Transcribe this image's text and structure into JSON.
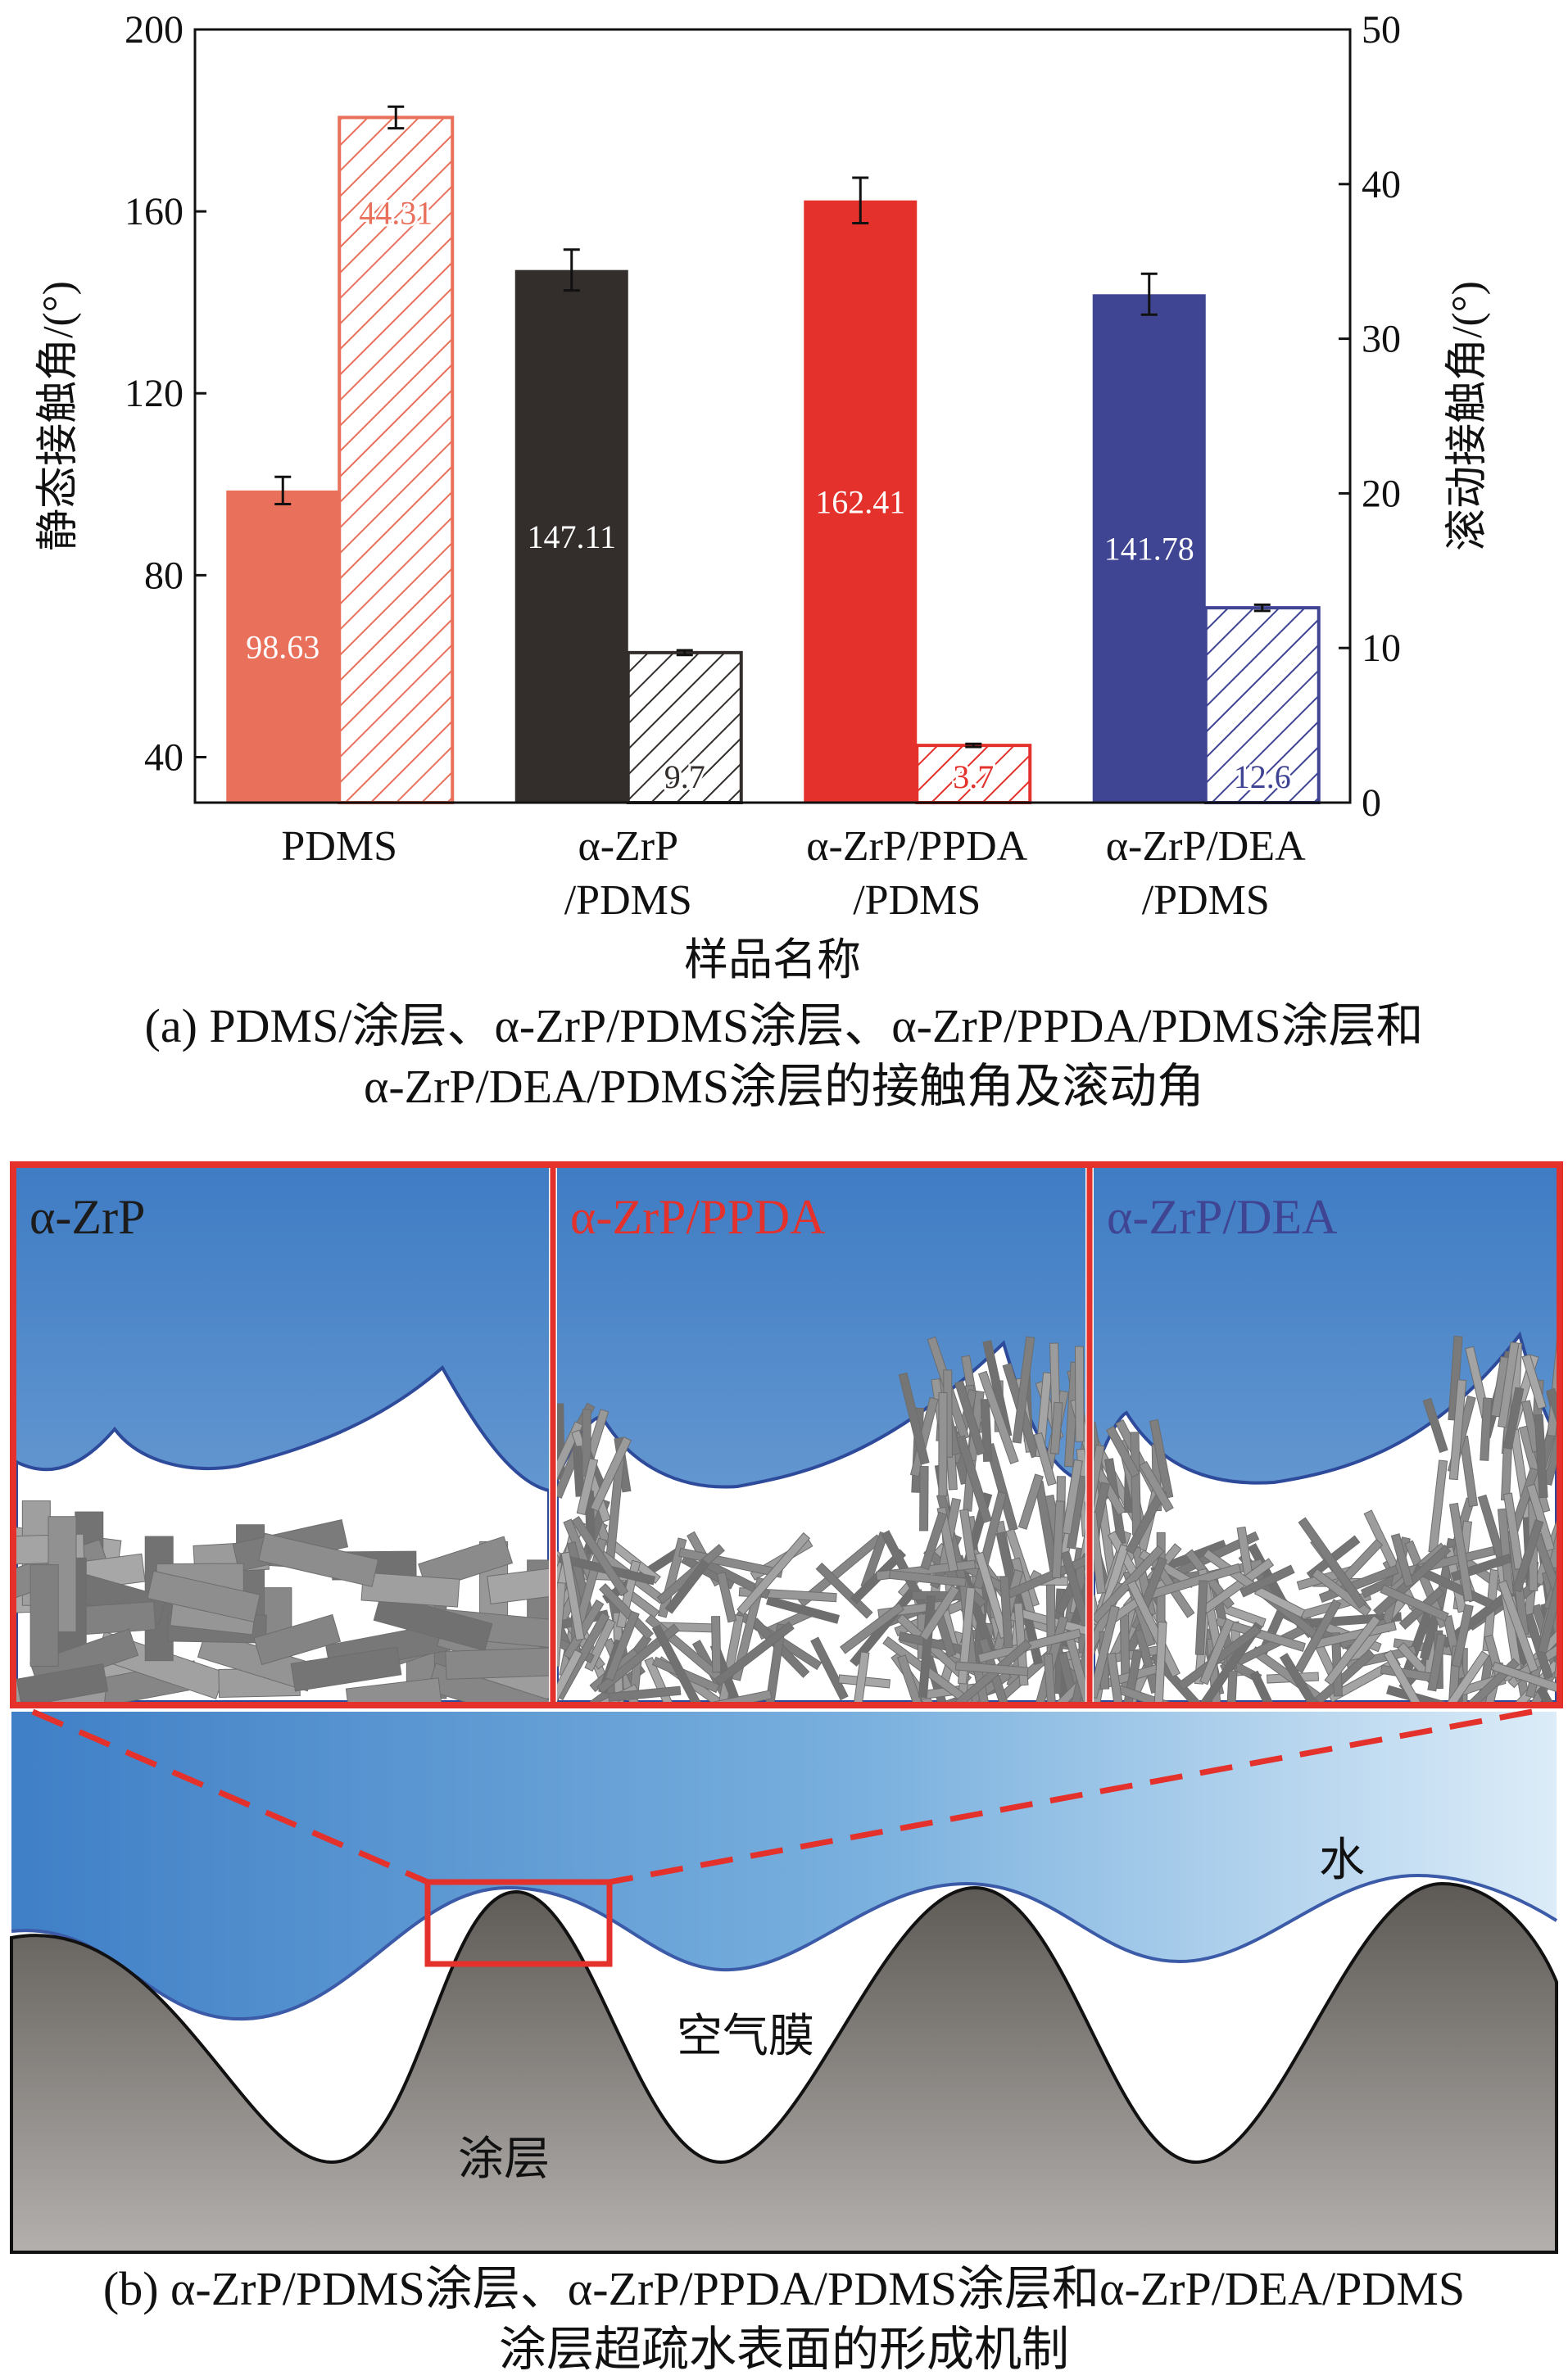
{
  "chart_data": {
    "type": "bar",
    "xlabel": "样品名称",
    "ylabel": "静态接触角/(°)",
    "y2label": "滚动接触角/(°)",
    "ylim": [
      30,
      200
    ],
    "y2lim": [
      0,
      50
    ],
    "yticks": [
      40,
      80,
      120,
      160,
      200
    ],
    "y2ticks": [
      0,
      10,
      20,
      30,
      40,
      50
    ],
    "categories": [
      [
        "PDMS"
      ],
      [
        "α-ZrP",
        "/PDMS"
      ],
      [
        "α-ZrP/PPDA",
        "/PDMS"
      ],
      [
        "α-ZrP/DEA",
        "/PDMS"
      ]
    ],
    "series": [
      {
        "axis": "left",
        "fill": "solid",
        "values": [
          98.63,
          147.11,
          162.41,
          141.78
        ],
        "errors": [
          3,
          4.5,
          5,
          4.5
        ],
        "labels": [
          "98.63",
          "147.11",
          "162.41",
          "141.78"
        ]
      },
      {
        "axis": "right",
        "fill": "hatched",
        "values": [
          44.31,
          9.7,
          3.7,
          12.6
        ],
        "errors": [
          0.7,
          0.15,
          0.1,
          0.2
        ],
        "labels": [
          "44.31",
          "9.7",
          "3.7",
          "12.6"
        ]
      }
    ],
    "colors": [
      "#e9705b",
      "#332e2b",
      "#e4312b",
      "#3f4493"
    ]
  },
  "caption_a": [
    "(a) PDMS/涂层、α-ZrP/PDMS涂层、α-ZrP/PPDA/PDMS涂层和",
    "α-ZrP/DEA/PDMS涂层的接触角及滚动角"
  ],
  "diagram": {
    "panels": [
      {
        "title": "α-ZrP",
        "color": "#1c1c1c"
      },
      {
        "title": "α-ZrP/PPDA",
        "color": "#e4312b"
      },
      {
        "title": "α-ZrP/DEA",
        "color": "#3f4493"
      }
    ],
    "labels": {
      "water": "水",
      "air_film": "空气膜",
      "coating": "涂层"
    }
  },
  "caption_b": [
    "(b) α-ZrP/PDMS涂层、α-ZrP/PPDA/PDMS涂层和α-ZrP/DEA/PDMS",
    "涂层超疏水表面的形成机制"
  ]
}
